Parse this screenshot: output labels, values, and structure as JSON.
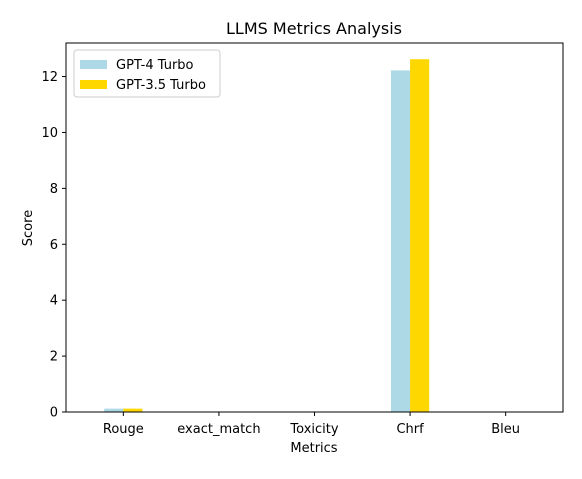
{
  "chart_data": {
    "type": "bar",
    "title": "LLMS Metrics Analysis",
    "xlabel": "Metrics",
    "ylabel": "Score",
    "categories": [
      "Rouge",
      "exact_match",
      "Toxicity",
      "Chrf",
      "Bleu"
    ],
    "series": [
      {
        "name": "GPT-4 Turbo",
        "color": "#add8e6",
        "values": [
          0.12,
          0.0,
          0.0,
          12.22,
          0.0
        ]
      },
      {
        "name": "GPT-3.5 Turbo",
        "color": "#ffd700",
        "values": [
          0.12,
          0.0,
          0.0,
          12.62,
          0.0
        ]
      }
    ],
    "ylim": [
      0,
      13.2
    ],
    "yticks": [
      0,
      2,
      4,
      6,
      8,
      10,
      12
    ],
    "grid": false,
    "legend_position": "top-left"
  }
}
